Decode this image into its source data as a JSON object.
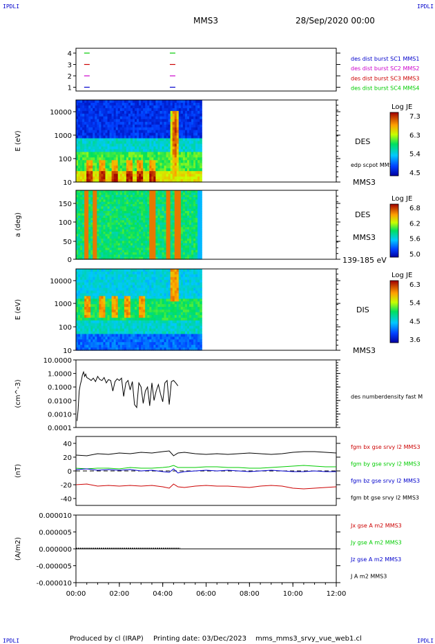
{
  "header": {
    "mission": "MMS3",
    "datetime": "28/Sep/2020 00:00",
    "corner_logo": "IPDLI"
  },
  "footer": {
    "produced_by": "Produced by cl (IRAP)",
    "printing_date": "Printing date: 03/Dec/2023",
    "filename": "mms_mms3_srvy_vue_web1.cl"
  },
  "chart_data": [
    {
      "type": "line",
      "id": "spacecraft-availability",
      "y_ticks": [
        "4",
        "3",
        "2",
        "1"
      ],
      "x_range_hours": [
        0,
        12
      ],
      "legend": [
        {
          "text": "des dist burst SC1 MMS1",
          "color": "#0000cc",
          "level": 1
        },
        {
          "text": "des dist burst SC2 MMS2",
          "color": "#cc00cc",
          "level": 2
        },
        {
          "text": "des dist burst SC3 MMS3",
          "color": "#cc0000",
          "level": 3
        },
        {
          "text": "des dist burst SC4 MMS4",
          "color": "#00cc00",
          "level": 4
        }
      ],
      "segments_hours": [
        [
          0.25,
          0.55
        ],
        [
          4.2,
          4.7
        ]
      ]
    },
    {
      "type": "heatmap",
      "id": "des-energy-spectrogram",
      "ylabel": "E (eV)",
      "y_ticks": [
        "10000",
        "1000",
        "100",
        "10"
      ],
      "y_log": true,
      "ylim": [
        10,
        30000
      ],
      "data_end_hours": 5.8,
      "right_labels": [
        "DES",
        "edp scpot MMS3",
        "MMS3"
      ],
      "colorbar": {
        "title": "Log JE",
        "ticks": [
          "7.3",
          "6.3",
          "5.4",
          "4.5"
        ],
        "min": 4.5,
        "max": 7.3
      }
    },
    {
      "type": "heatmap",
      "id": "des-pitch-angle",
      "ylabel": "a (deg)",
      "y_ticks": [
        "150",
        "100",
        "50",
        "0"
      ],
      "ylim": [
        0,
        180
      ],
      "data_end_hours": 5.8,
      "right_labels": [
        "DES",
        "MMS3",
        "139-185 eV"
      ],
      "colorbar": {
        "title": "Log JE",
        "ticks": [
          "6.8",
          "6.2",
          "5.6",
          "5.0"
        ],
        "min": 5.0,
        "max": 6.8
      }
    },
    {
      "type": "heatmap",
      "id": "dis-energy-spectrogram",
      "ylabel": "E (eV)",
      "y_ticks": [
        "10000",
        "1000",
        "100",
        "10"
      ],
      "y_log": true,
      "ylim": [
        10,
        30000
      ],
      "data_end_hours": 5.8,
      "right_labels": [
        "DIS",
        "MMS3"
      ],
      "colorbar": {
        "title": "Log JE",
        "ticks": [
          "6.3",
          "5.4",
          "4.5",
          "3.6"
        ],
        "min": 3.6,
        "max": 6.3
      }
    },
    {
      "type": "line",
      "id": "number-density",
      "ylabel": "(cm^-3)",
      "y_ticks": [
        "10.0000",
        "1.0000",
        "0.1000",
        "0.0100",
        "0.0010",
        "0.0001"
      ],
      "y_log": true,
      "ylim": [
        0.0001,
        10
      ],
      "series": [
        {
          "name": "des numberdensity fast M",
          "color": "#000000",
          "x": [
            0.05,
            0.1,
            0.15,
            0.2,
            0.25,
            0.3,
            0.35,
            0.4,
            0.45,
            0.5,
            0.6,
            0.7,
            0.8,
            0.9,
            1.0,
            1.1,
            1.2,
            1.3,
            1.4,
            1.5,
            1.6,
            1.7,
            1.8,
            1.9,
            2.0,
            2.1,
            2.2,
            2.3,
            2.4,
            2.5,
            2.6,
            2.7,
            2.8,
            2.9,
            3.0,
            3.1,
            3.2,
            3.3,
            3.4,
            3.5,
            3.6,
            3.7,
            3.8,
            3.9,
            4.0,
            4.1,
            4.2,
            4.3,
            4.4,
            4.5,
            4.6,
            4.7
          ],
          "y": [
            0.0003,
            0.002,
            0.05,
            0.15,
            0.3,
            0.8,
            1.3,
            0.6,
            0.9,
            0.5,
            0.4,
            0.3,
            0.45,
            0.25,
            0.6,
            0.35,
            0.3,
            0.5,
            0.2,
            0.35,
            0.3,
            0.05,
            0.25,
            0.4,
            0.3,
            0.45,
            0.02,
            0.2,
            0.3,
            0.06,
            0.25,
            0.005,
            0.003,
            0.2,
            0.1,
            0.006,
            0.05,
            0.1,
            0.004,
            0.2,
            0.01,
            0.05,
            0.15,
            0.03,
            0.008,
            0.2,
            0.3,
            0.005,
            0.25,
            0.3,
            0.2,
            0.12
          ]
        }
      ]
    },
    {
      "type": "line",
      "id": "magnetic-field",
      "ylabel": "(nT)",
      "y_ticks": [
        "40",
        "20",
        "0",
        "-20",
        "-40"
      ],
      "ylim": [
        -50,
        50
      ],
      "x": [
        0,
        0.5,
        1,
        1.5,
        2,
        2.5,
        3,
        3.5,
        4,
        4.3,
        4.5,
        4.7,
        5,
        5.5,
        6,
        6.5,
        7,
        7.5,
        8,
        8.5,
        9,
        9.5,
        10,
        10.5,
        11,
        11.5,
        12
      ],
      "series": [
        {
          "name": "fgm bx gse srvy l2 MMS3",
          "color": "#cc0000",
          "values": [
            -20,
            -19,
            -22,
            -21,
            -22,
            -21,
            -22,
            -21,
            -23,
            -25,
            -19,
            -23,
            -24,
            -22,
            -21,
            -22,
            -22,
            -23,
            -24,
            -22,
            -21,
            -22,
            -25,
            -26,
            -25,
            -24,
            -23
          ]
        },
        {
          "name": "fgm by gse srvy l2 MMS3",
          "color": "#00cc00",
          "values": [
            4,
            3,
            4,
            4,
            3,
            5,
            4,
            4,
            5,
            6,
            8,
            5,
            5,
            5,
            6,
            6,
            5,
            5,
            4,
            4,
            5,
            6,
            7,
            8,
            7,
            6,
            6
          ]
        },
        {
          "name": "fgm bz gse srvy l2 MMS3",
          "color": "#0000cc",
          "values": [
            2,
            3,
            1,
            2,
            1,
            2,
            0,
            1,
            -1,
            -2,
            3,
            -3,
            -1,
            0,
            1,
            0,
            1,
            0,
            -1,
            0,
            1,
            0,
            -1,
            -1,
            0,
            -1,
            -1
          ]
        },
        {
          "name": "fgm bt gse srvy l2 MMS3",
          "color": "#000000",
          "values": [
            23,
            22,
            25,
            24,
            26,
            25,
            27,
            26,
            28,
            29,
            22,
            26,
            27,
            25,
            24,
            25,
            24,
            25,
            26,
            25,
            24,
            25,
            27,
            28,
            28,
            27,
            26
          ]
        }
      ]
    },
    {
      "type": "line",
      "id": "current-density",
      "ylabel": "(A/m2)",
      "y_ticks": [
        "0.000010",
        "0.000005",
        "0.000000",
        "-0.000005",
        "-0.000010"
      ],
      "ylim": [
        -1e-05,
        1e-05
      ],
      "x_data_range_hours": [
        0,
        4.8
      ],
      "series": [
        {
          "name": "Jx gse A m2 MMS3",
          "color": "#cc0000"
        },
        {
          "name": "Jy gse A m2 MMS3",
          "color": "#00cc00"
        },
        {
          "name": "Jz gse A m2 MMS3",
          "color": "#0000cc"
        },
        {
          "name": "J A m2 MMS3",
          "color": "#000000"
        }
      ]
    }
  ],
  "x_axis": {
    "ticks": [
      "00:00",
      "02:00",
      "04:00",
      "06:00",
      "08:00",
      "10:00",
      "12:00"
    ],
    "range_hours": [
      0,
      12
    ]
  }
}
